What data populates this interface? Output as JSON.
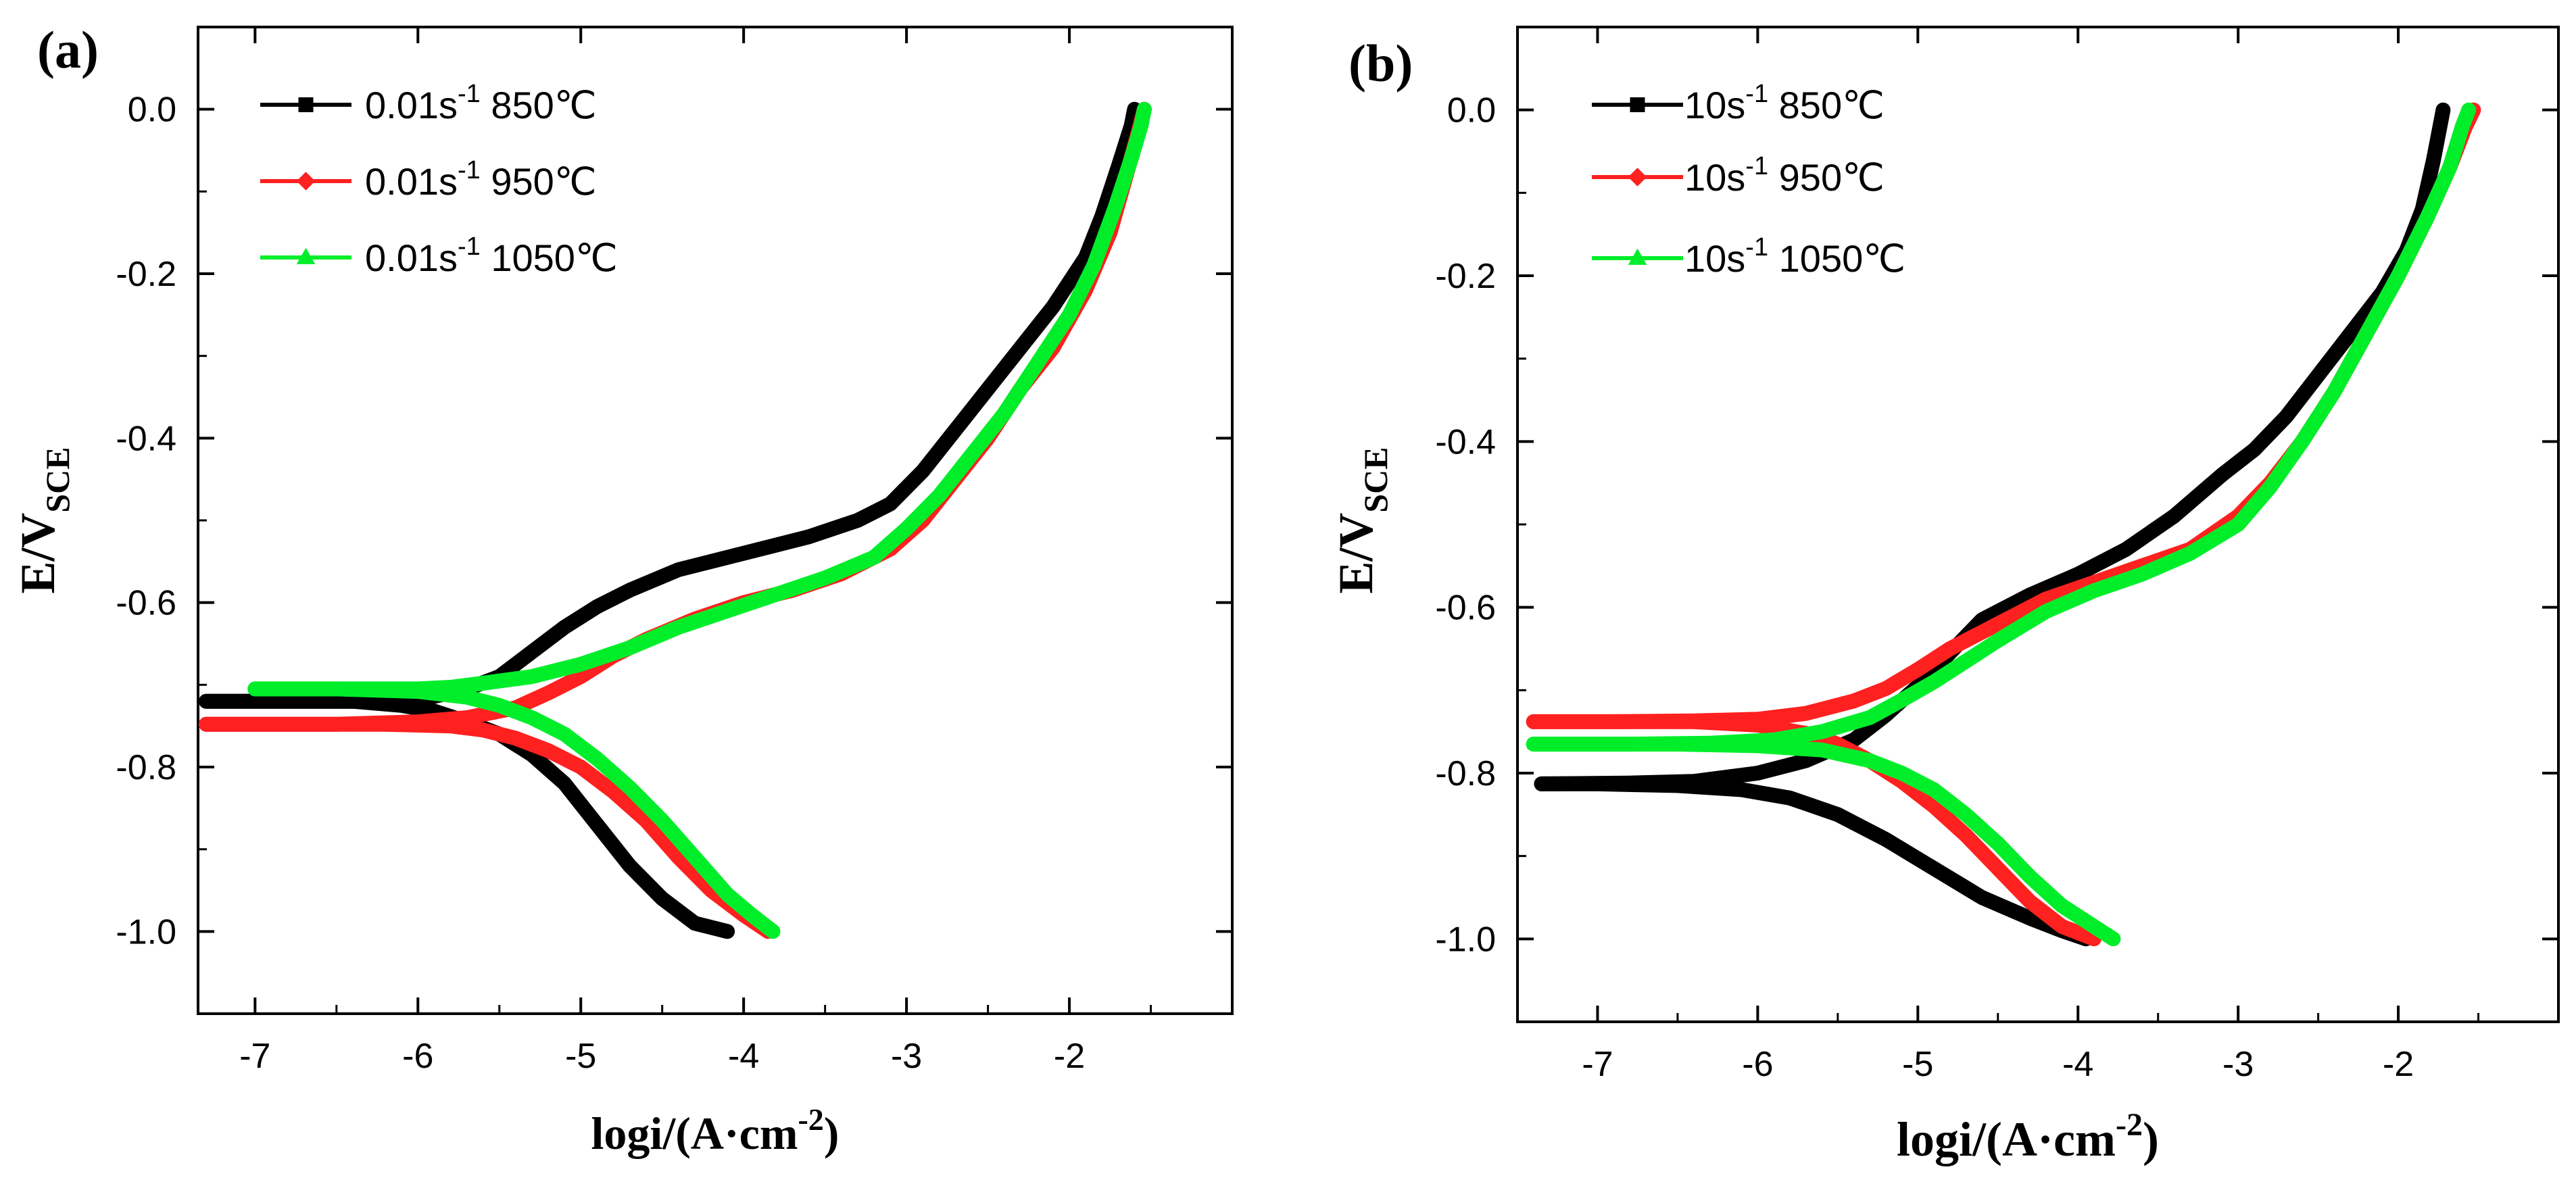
{
  "colors": {
    "black": "#000000",
    "red": "#ff2020",
    "green": "#00ee2a"
  },
  "chart_data": [
    {
      "type": "line",
      "panel_label": "(a)",
      "xlabel_main": "logi/(A·cm",
      "xlabel_sup": "-2",
      "xlabel_close": ")",
      "ylabel_main": "E/V",
      "ylabel_sub": "SCE",
      "xlim": [
        -7.35,
        -1.0
      ],
      "ylim": [
        -1.1,
        0.1
      ],
      "xticks": [
        -7,
        -6,
        -5,
        -4,
        -3,
        -2
      ],
      "xtick_labels": [
        "-7",
        "-6",
        "-5",
        "-4",
        "-3",
        "-2"
      ],
      "yticks": [
        0.0,
        -0.2,
        -0.4,
        -0.6,
        -0.8,
        -1.0
      ],
      "ytick_labels": [
        "0.0",
        "-0.2",
        "-0.4",
        "-0.6",
        "-0.8",
        "-1.0"
      ],
      "legend_position": "top-left",
      "series": [
        {
          "name": "0.01s-1 850℃",
          "label_main": "0.01s",
          "label_sup": "-1",
          "label_rest": " 850℃",
          "color": "black",
          "marker": "square",
          "cathodic": [
            [
              -4.1,
              -1.0
            ],
            [
              -4.3,
              -0.99
            ],
            [
              -4.5,
              -0.96
            ],
            [
              -4.7,
              -0.92
            ],
            [
              -4.9,
              -0.87
            ],
            [
              -5.1,
              -0.82
            ],
            [
              -5.3,
              -0.785
            ],
            [
              -5.5,
              -0.76
            ],
            [
              -5.7,
              -0.745
            ],
            [
              -5.9,
              -0.732
            ],
            [
              -6.1,
              -0.725
            ],
            [
              -6.4,
              -0.72
            ],
            [
              -6.8,
              -0.72
            ],
            [
              -7.3,
              -0.72
            ]
          ],
          "anodic": [
            [
              -7.3,
              -0.72
            ],
            [
              -6.8,
              -0.72
            ],
            [
              -6.4,
              -0.72
            ],
            [
              -6.1,
              -0.718
            ],
            [
              -5.9,
              -0.714
            ],
            [
              -5.7,
              -0.705
            ],
            [
              -5.5,
              -0.69
            ],
            [
              -5.3,
              -0.66
            ],
            [
              -5.1,
              -0.63
            ],
            [
              -4.9,
              -0.605
            ],
            [
              -4.7,
              -0.585
            ],
            [
              -4.4,
              -0.56
            ],
            [
              -4.0,
              -0.54
            ],
            [
              -3.6,
              -0.52
            ],
            [
              -3.3,
              -0.5
            ],
            [
              -3.1,
              -0.48
            ],
            [
              -2.9,
              -0.44
            ],
            [
              -2.7,
              -0.39
            ],
            [
              -2.5,
              -0.34
            ],
            [
              -2.3,
              -0.29
            ],
            [
              -2.1,
              -0.24
            ],
            [
              -1.9,
              -0.18
            ],
            [
              -1.8,
              -0.13
            ],
            [
              -1.7,
              -0.07
            ],
            [
              -1.62,
              -0.02
            ],
            [
              -1.6,
              0.0
            ]
          ]
        },
        {
          "name": "0.01s-1 950℃",
          "label_main": "0.01s",
          "label_sup": "-1",
          "label_rest": " 950℃",
          "color": "red",
          "marker": "diamond",
          "cathodic": [
            [
              -3.85,
              -1.0
            ],
            [
              -4.0,
              -0.98
            ],
            [
              -4.2,
              -0.95
            ],
            [
              -4.4,
              -0.91
            ],
            [
              -4.6,
              -0.865
            ],
            [
              -4.8,
              -0.83
            ],
            [
              -5.0,
              -0.8
            ],
            [
              -5.2,
              -0.78
            ],
            [
              -5.4,
              -0.765
            ],
            [
              -5.6,
              -0.755
            ],
            [
              -5.8,
              -0.75
            ],
            [
              -6.2,
              -0.748
            ],
            [
              -6.8,
              -0.748
            ],
            [
              -7.3,
              -0.748
            ]
          ],
          "anodic": [
            [
              -7.3,
              -0.748
            ],
            [
              -6.5,
              -0.748
            ],
            [
              -6.0,
              -0.745
            ],
            [
              -5.7,
              -0.74
            ],
            [
              -5.4,
              -0.728
            ],
            [
              -5.2,
              -0.71
            ],
            [
              -5.0,
              -0.69
            ],
            [
              -4.8,
              -0.665
            ],
            [
              -4.6,
              -0.645
            ],
            [
              -4.3,
              -0.62
            ],
            [
              -4.0,
              -0.6
            ],
            [
              -3.7,
              -0.585
            ],
            [
              -3.4,
              -0.565
            ],
            [
              -3.1,
              -0.535
            ],
            [
              -2.9,
              -0.5
            ],
            [
              -2.7,
              -0.45
            ],
            [
              -2.5,
              -0.4
            ],
            [
              -2.3,
              -0.34
            ],
            [
              -2.1,
              -0.29
            ],
            [
              -1.9,
              -0.22
            ],
            [
              -1.75,
              -0.15
            ],
            [
              -1.65,
              -0.08
            ],
            [
              -1.58,
              -0.03
            ],
            [
              -1.54,
              0.0
            ]
          ]
        },
        {
          "name": "0.01s-1 1050℃",
          "label_main": "0.01s",
          "label_sup": "-1",
          "label_rest": " 1050℃",
          "color": "green",
          "marker": "triangle",
          "cathodic": [
            [
              -3.82,
              -1.0
            ],
            [
              -3.95,
              -0.98
            ],
            [
              -4.1,
              -0.955
            ],
            [
              -4.3,
              -0.91
            ],
            [
              -4.5,
              -0.865
            ],
            [
              -4.7,
              -0.825
            ],
            [
              -4.9,
              -0.79
            ],
            [
              -5.1,
              -0.76
            ],
            [
              -5.3,
              -0.74
            ],
            [
              -5.5,
              -0.725
            ],
            [
              -5.7,
              -0.715
            ],
            [
              -6.0,
              -0.708
            ],
            [
              -6.5,
              -0.705
            ],
            [
              -7.0,
              -0.705
            ]
          ],
          "anodic": [
            [
              -7.0,
              -0.705
            ],
            [
              -6.5,
              -0.705
            ],
            [
              -6.0,
              -0.705
            ],
            [
              -5.8,
              -0.703
            ],
            [
              -5.6,
              -0.698
            ],
            [
              -5.3,
              -0.69
            ],
            [
              -5.0,
              -0.675
            ],
            [
              -4.7,
              -0.655
            ],
            [
              -4.4,
              -0.63
            ],
            [
              -4.1,
              -0.61
            ],
            [
              -3.8,
              -0.59
            ],
            [
              -3.5,
              -0.57
            ],
            [
              -3.2,
              -0.545
            ],
            [
              -3.0,
              -0.51
            ],
            [
              -2.8,
              -0.47
            ],
            [
              -2.6,
              -0.42
            ],
            [
              -2.4,
              -0.37
            ],
            [
              -2.2,
              -0.31
            ],
            [
              -2.0,
              -0.25
            ],
            [
              -1.85,
              -0.19
            ],
            [
              -1.72,
              -0.12
            ],
            [
              -1.62,
              -0.06
            ],
            [
              -1.56,
              -0.02
            ],
            [
              -1.54,
              0.0
            ]
          ]
        }
      ]
    },
    {
      "type": "line",
      "panel_label": "(b)",
      "xlabel_main": "logi/(A·cm",
      "xlabel_sup": "-2",
      "xlabel_close": ")",
      "ylabel_main": "E/V",
      "ylabel_sub": "SCE",
      "xlim": [
        -7.5,
        -1.0
      ],
      "ylim": [
        -1.1,
        0.1
      ],
      "xticks": [
        -7,
        -6,
        -5,
        -4,
        -3,
        -2
      ],
      "xtick_labels": [
        "-7",
        "-6",
        "-5",
        "-4",
        "-3",
        "-2"
      ],
      "yticks": [
        0.0,
        -0.2,
        -0.4,
        -0.6,
        -0.8,
        -1.0
      ],
      "ytick_labels": [
        "0.0",
        "-0.2",
        "-0.4",
        "-0.6",
        "-0.8",
        "-1.0"
      ],
      "legend_position": "top-left",
      "series": [
        {
          "name": "10s-1 850℃",
          "label_main": "10s",
          "label_sup": "-1",
          "label_rest": " 850℃",
          "color": "black",
          "marker": "square",
          "cathodic": [
            [
              -3.95,
              -1.0
            ],
            [
              -4.1,
              -0.99
            ],
            [
              -4.3,
              -0.975
            ],
            [
              -4.6,
              -0.95
            ],
            [
              -4.9,
              -0.915
            ],
            [
              -5.2,
              -0.88
            ],
            [
              -5.5,
              -0.85
            ],
            [
              -5.8,
              -0.83
            ],
            [
              -6.1,
              -0.82
            ],
            [
              -6.5,
              -0.815
            ],
            [
              -7.0,
              -0.813
            ],
            [
              -7.35,
              -0.813
            ]
          ],
          "anodic": [
            [
              -7.35,
              -0.813
            ],
            [
              -6.8,
              -0.812
            ],
            [
              -6.4,
              -0.81
            ],
            [
              -6.0,
              -0.8
            ],
            [
              -5.7,
              -0.785
            ],
            [
              -5.4,
              -0.76
            ],
            [
              -5.2,
              -0.73
            ],
            [
              -5.0,
              -0.695
            ],
            [
              -4.8,
              -0.655
            ],
            [
              -4.6,
              -0.615
            ],
            [
              -4.3,
              -0.585
            ],
            [
              -4.0,
              -0.56
            ],
            [
              -3.7,
              -0.53
            ],
            [
              -3.4,
              -0.49
            ],
            [
              -3.1,
              -0.44
            ],
            [
              -2.9,
              -0.41
            ],
            [
              -2.7,
              -0.37
            ],
            [
              -2.5,
              -0.32
            ],
            [
              -2.3,
              -0.27
            ],
            [
              -2.1,
              -0.22
            ],
            [
              -1.95,
              -0.17
            ],
            [
              -1.85,
              -0.12
            ],
            [
              -1.78,
              -0.06
            ],
            [
              -1.74,
              -0.02
            ],
            [
              -1.72,
              0.0
            ]
          ]
        },
        {
          "name": "10s-1 950℃",
          "label_main": "10s",
          "label_sup": "-1",
          "label_rest": " 950℃",
          "color": "red",
          "marker": "diamond",
          "cathodic": [
            [
              -3.9,
              -1.0
            ],
            [
              -4.1,
              -0.985
            ],
            [
              -4.3,
              -0.955
            ],
            [
              -4.5,
              -0.915
            ],
            [
              -4.7,
              -0.875
            ],
            [
              -4.9,
              -0.84
            ],
            [
              -5.1,
              -0.81
            ],
            [
              -5.3,
              -0.785
            ],
            [
              -5.5,
              -0.765
            ],
            [
              -5.7,
              -0.752
            ],
            [
              -6.0,
              -0.742
            ],
            [
              -6.4,
              -0.738
            ],
            [
              -6.9,
              -0.738
            ],
            [
              -7.4,
              -0.738
            ]
          ],
          "anodic": [
            [
              -7.4,
              -0.738
            ],
            [
              -6.9,
              -0.738
            ],
            [
              -6.4,
              -0.737
            ],
            [
              -6.0,
              -0.735
            ],
            [
              -5.7,
              -0.728
            ],
            [
              -5.4,
              -0.713
            ],
            [
              -5.2,
              -0.698
            ],
            [
              -5.0,
              -0.675
            ],
            [
              -4.8,
              -0.65
            ],
            [
              -4.5,
              -0.62
            ],
            [
              -4.2,
              -0.59
            ],
            [
              -3.9,
              -0.57
            ],
            [
              -3.6,
              -0.55
            ],
            [
              -3.3,
              -0.53
            ],
            [
              -3.0,
              -0.49
            ],
            [
              -2.8,
              -0.45
            ],
            [
              -2.6,
              -0.4
            ],
            [
              -2.4,
              -0.34
            ],
            [
              -2.2,
              -0.27
            ],
            [
              -2.0,
              -0.2
            ],
            [
              -1.82,
              -0.13
            ],
            [
              -1.68,
              -0.07
            ],
            [
              -1.58,
              -0.02
            ],
            [
              -1.53,
              0.0
            ]
          ]
        },
        {
          "name": "10s-1 1050℃",
          "label_main": "10s",
          "label_sup": "-1",
          "label_rest": " 1050℃",
          "color": "green",
          "marker": "triangle",
          "cathodic": [
            [
              -3.78,
              -1.0
            ],
            [
              -3.9,
              -0.985
            ],
            [
              -4.1,
              -0.96
            ],
            [
              -4.3,
              -0.925
            ],
            [
              -4.5,
              -0.885
            ],
            [
              -4.7,
              -0.85
            ],
            [
              -4.9,
              -0.82
            ],
            [
              -5.1,
              -0.8
            ],
            [
              -5.3,
              -0.785
            ],
            [
              -5.6,
              -0.772
            ],
            [
              -6.0,
              -0.767
            ],
            [
              -6.5,
              -0.765
            ],
            [
              -7.0,
              -0.765
            ],
            [
              -7.4,
              -0.765
            ]
          ],
          "anodic": [
            [
              -7.4,
              -0.765
            ],
            [
              -6.8,
              -0.765
            ],
            [
              -6.3,
              -0.764
            ],
            [
              -5.9,
              -0.76
            ],
            [
              -5.6,
              -0.75
            ],
            [
              -5.3,
              -0.733
            ],
            [
              -5.1,
              -0.712
            ],
            [
              -4.9,
              -0.69
            ],
            [
              -4.7,
              -0.665
            ],
            [
              -4.5,
              -0.64
            ],
            [
              -4.2,
              -0.605
            ],
            [
              -3.9,
              -0.58
            ],
            [
              -3.6,
              -0.56
            ],
            [
              -3.3,
              -0.535
            ],
            [
              -3.0,
              -0.5
            ],
            [
              -2.8,
              -0.455
            ],
            [
              -2.6,
              -0.4
            ],
            [
              -2.4,
              -0.34
            ],
            [
              -2.2,
              -0.27
            ],
            [
              -2.0,
              -0.2
            ],
            [
              -1.82,
              -0.13
            ],
            [
              -1.68,
              -0.07
            ],
            [
              -1.6,
              -0.02
            ],
            [
              -1.56,
              0.0
            ]
          ]
        }
      ]
    }
  ]
}
